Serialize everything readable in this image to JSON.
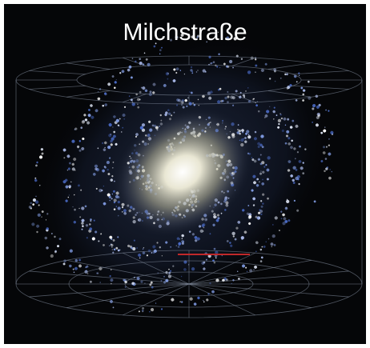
{
  "header": {
    "title": "Milchstraße"
  }
}
